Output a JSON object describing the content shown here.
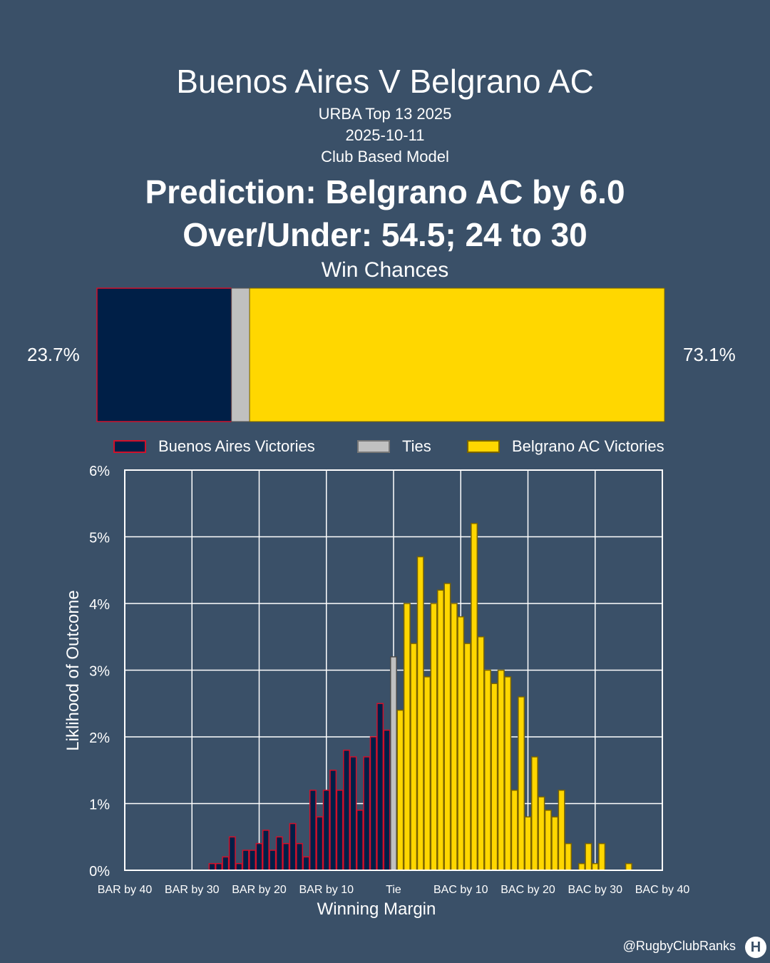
{
  "header": {
    "title": "Buenos Aires V Belgrano AC",
    "competition": "URBA Top 13 2025",
    "date": "2025-10-11",
    "model": "Club Based Model",
    "prediction": "Prediction: Belgrano AC by 6.0",
    "over_under": "Over/Under: 54.5; 24 to 30",
    "win_chances_label": "Win Chances"
  },
  "win_chances": {
    "home_pct_label": "23.7%",
    "away_pct_label": "73.1%",
    "home_fraction": 0.237,
    "tie_fraction": 0.032,
    "away_fraction": 0.731
  },
  "colors": {
    "background": "#3a5068",
    "home": "#001f47",
    "home_edge": "#d0102a",
    "tie": "#c0c0c0",
    "away": "#ffd700",
    "away_edge": "#7a6400"
  },
  "chart_data": {
    "type": "bar",
    "xlabel": "Winning Margin",
    "ylabel": "Liklihood of Outcome",
    "ylim": [
      0,
      6
    ],
    "xlim": [
      -40,
      40
    ],
    "grid": true,
    "y_ticks": [
      "0%",
      "1%",
      "2%",
      "3%",
      "4%",
      "5%",
      "6%"
    ],
    "x_ticks": [
      {
        "value": -40,
        "label": "BAR by 40"
      },
      {
        "value": -30,
        "label": "BAR by 30"
      },
      {
        "value": -20,
        "label": "BAR by 20"
      },
      {
        "value": -10,
        "label": "BAR by 10"
      },
      {
        "value": 0,
        "label": "Tie"
      },
      {
        "value": 10,
        "label": "BAC by 10"
      },
      {
        "value": 20,
        "label": "BAC by 20"
      },
      {
        "value": 30,
        "label": "BAC by 30"
      },
      {
        "value": 40,
        "label": "BAC by 40"
      }
    ],
    "legend": [
      "Buenos Aires Victories",
      "Ties",
      "Belgrano AC Victories"
    ],
    "legend_position": "top",
    "series": [
      {
        "name": "Buenos Aires Victories",
        "points": [
          [
            -27,
            0.1
          ],
          [
            -26,
            0.1
          ],
          [
            -25,
            0.2
          ],
          [
            -24,
            0.5
          ],
          [
            -23,
            0.1
          ],
          [
            -22,
            0.3
          ],
          [
            -21,
            0.3
          ],
          [
            -20,
            0.4
          ],
          [
            -19,
            0.6
          ],
          [
            -18,
            0.3
          ],
          [
            -17,
            0.5
          ],
          [
            -16,
            0.4
          ],
          [
            -15,
            0.7
          ],
          [
            -14,
            0.4
          ],
          [
            -13,
            0.2
          ],
          [
            -12,
            1.2
          ],
          [
            -11,
            0.8
          ],
          [
            -10,
            1.2
          ],
          [
            -9,
            1.5
          ],
          [
            -8,
            1.2
          ],
          [
            -7,
            1.8
          ],
          [
            -6,
            1.7
          ],
          [
            -5,
            0.9
          ],
          [
            -4,
            1.7
          ],
          [
            -3,
            2.0
          ],
          [
            -2,
            2.5
          ],
          [
            -1,
            2.1
          ]
        ]
      },
      {
        "name": "Ties",
        "points": [
          [
            0,
            3.2
          ]
        ]
      },
      {
        "name": "Belgrano AC Victories",
        "points": [
          [
            1,
            2.4
          ],
          [
            2,
            4.0
          ],
          [
            3,
            3.4
          ],
          [
            4,
            4.7
          ],
          [
            5,
            2.9
          ],
          [
            6,
            4.0
          ],
          [
            7,
            4.2
          ],
          [
            8,
            4.3
          ],
          [
            9,
            4.0
          ],
          [
            10,
            3.8
          ],
          [
            11,
            3.4
          ],
          [
            12,
            5.2
          ],
          [
            13,
            3.5
          ],
          [
            14,
            3.0
          ],
          [
            15,
            2.8
          ],
          [
            16,
            3.0
          ],
          [
            17,
            2.9
          ],
          [
            18,
            1.2
          ],
          [
            19,
            2.6
          ],
          [
            20,
            0.8
          ],
          [
            21,
            1.7
          ],
          [
            22,
            1.1
          ],
          [
            23,
            0.9
          ],
          [
            24,
            0.8
          ],
          [
            25,
            1.2
          ],
          [
            26,
            0.4
          ],
          [
            28,
            0.1
          ],
          [
            29,
            0.4
          ],
          [
            30,
            0.1
          ],
          [
            31,
            0.4
          ],
          [
            35,
            0.1
          ]
        ]
      }
    ]
  },
  "footer": {
    "handle": "@RugbyClubRanks",
    "logo_text": "H"
  }
}
